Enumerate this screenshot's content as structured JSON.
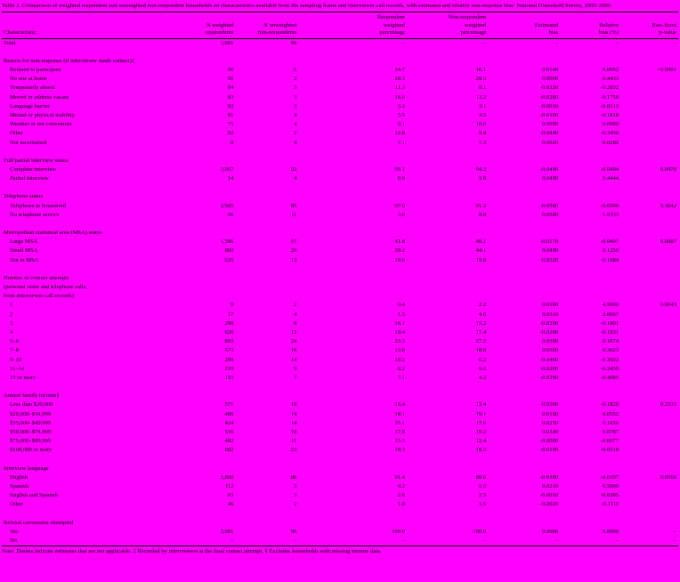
{
  "page": {
    "background_color": "#FF00FF",
    "title": "Table 2. Comparison of weighted respondent and unweighted non-respondent households on characteristics available from the sampling frame and interviewer call records, with estimated and relative non-response bias: National Household Survey, 2005–2006",
    "footnote": "Note: Dashes indicate estimates that are not applicable. ‡ Recorded by interviewers at the final contact attempt. § Excludes households with missing income data."
  },
  "table": {
    "columns": [
      {
        "label": "Characteristic"
      },
      {
        "label": "N weighted\nrespondents"
      },
      {
        "label": "N unweighted\nnon-respondents"
      },
      {
        "label": "Respondent\nweighted\npercentage"
      },
      {
        "label": "Non-respondent\nweighted\npercentage"
      },
      {
        "label": "Estimated\nbias"
      },
      {
        "label": "Relative\nbias (%)"
      },
      {
        "label": "Rao–Scott\np-value"
      }
    ],
    "total_row": {
      "label": "Total",
      "cells": [
        "3,081",
        "96",
        "–",
        "–",
        "–",
        "–",
        "–"
      ]
    },
    "sections": [
      {
        "header_lines": [
          "Reason for non-response (if interviewer made contact)‡"
        ],
        "rows": [
          {
            "label": "Refused to participate",
            "cells": [
              "56",
              "6",
              "14.7",
              "16.1",
              "0.0140",
              "0.0952",
              "<0.0001"
            ]
          },
          {
            "label": "No one at home",
            "cells": [
              "95",
              "2",
              "20.3",
              "29.3",
              "0.0900",
              "0.4433",
              ""
            ]
          },
          {
            "label": "Temporarily absent",
            "cells": [
              "84",
              "3",
              "11.3",
              "8.1",
              "-0.0320",
              "-0.2832",
              ""
            ]
          },
          {
            "label": "Moved or address vacant",
            "cells": [
              "83",
              "3",
              "16.0",
              "13.2",
              "-0.0280",
              "-0.1750",
              ""
            ]
          },
          {
            "label": "Language barrier",
            "cells": [
              "82",
              "3",
              "3.2",
              "3.1",
              "-0.0010",
              "-0.0313",
              ""
            ]
          },
          {
            "label": "Mental or physical inability",
            "cells": [
              "81",
              "4",
              "5.5",
              "4.5",
              "-0.0100",
              "-0.1818",
              ""
            ]
          },
          {
            "label": "Weather or not convenient",
            "cells": [
              "75",
              "4",
              "9.1",
              "10.0",
              "0.0090",
              "0.0989",
              ""
            ]
          },
          {
            "label": "Other",
            "cells": [
              "82",
              "2",
              "12.8",
              "8.4",
              "-0.0440",
              "-0.3438",
              ""
            ]
          },
          {
            "label": "Not ascertained",
            "cells": [
              "8",
              "4",
              "7.1",
              "7.3",
              "0.0020",
              "0.0282",
              ""
            ]
          }
        ]
      },
      {
        "header_lines": [
          "Full/partial interview status"
        ],
        "rows": [
          {
            "label": "Complete interview",
            "cells": [
              "3,067",
              "92",
              "99.1",
              "94.2",
              "-0.0490",
              "-0.0494",
              "0.0478"
            ]
          },
          {
            "label": "Partial interview",
            "cells": [
              "14",
              "4",
              "0.9",
              "5.8",
              "0.0490",
              "5.4444",
              ""
            ]
          }
        ]
      },
      {
        "header_lines": [
          "Telephone status"
        ],
        "rows": [
          {
            "label": "Telephone in household",
            "cells": [
              "2,985",
              "85",
              "97.0",
              "91.2",
              "-0.0580",
              "-0.0598",
              "0.3042"
            ]
          },
          {
            "label": "No telephone service",
            "cells": [
              "96",
              "11",
              "3.0",
              "8.8",
              "0.0580",
              "1.9333",
              ""
            ]
          }
        ]
      },
      {
        "header_lines": [
          "Metropolitan statistical area (MSA) status"
        ],
        "rows": [
          {
            "label": "Large MSA",
            "cells": [
              "1,586",
              "57",
              "41.8",
              "40.1",
              "-0.0170",
              "-0.0407",
              "0.0087"
            ]
          },
          {
            "label": "Small MSA",
            "cells": [
              "860",
              "26",
              "39.2",
              "44.1",
              "0.0490",
              "0.1250",
              ""
            ]
          },
          {
            "label": "Not in MSA",
            "cells": [
              "635",
              "13",
              "19.0",
              "15.8",
              "-0.0320",
              "-0.1684",
              ""
            ]
          }
        ]
      },
      {
        "header_lines": [
          "Number of contact attempts",
          "(personal visits and telephone calls,",
          "from interviewer call records)"
        ],
        "rows": [
          {
            "label": "1",
            "cells": [
              "9",
              "2",
              "0.4",
              "2.2",
              "0.0180",
              "4.5000",
              "0.0643"
            ]
          },
          {
            "label": "2",
            "cells": [
              "17",
              "4",
              "1.5",
              "4.6",
              "0.0310",
              "2.0667",
              ""
            ]
          },
          {
            "label": "3",
            "cells": [
              "298",
              "8",
              "16.1",
              "13.2",
              "-0.0290",
              "-0.1801",
              ""
            ]
          },
          {
            "label": "4",
            "cells": [
              "620",
              "12",
              "19.4",
              "17.4",
              "-0.0200",
              "-0.1031",
              ""
            ]
          },
          {
            "label": "5–6",
            "cells": [
              "893",
              "24",
              "23.3",
              "27.2",
              "0.0390",
              "0.1674",
              ""
            ]
          },
          {
            "label": "7–8",
            "cells": [
              "573",
              "16",
              "13.8",
              "18.8",
              "0.0500",
              "0.3623",
              ""
            ]
          },
          {
            "label": "9–10",
            "cells": [
              "299",
              "14",
              "10.2",
              "6.2",
              "-0.0400",
              "-0.3922",
              ""
            ]
          },
          {
            "label": "11–14",
            "cells": [
              "219",
              "9",
              "8.2",
              "6.2",
              "-0.0200",
              "-0.2439",
              ""
            ]
          },
          {
            "label": "15 or more",
            "cells": [
              "153",
              "7",
              "7.1",
              "4.2",
              "-0.0290",
              "-0.4085",
              ""
            ]
          }
        ]
      },
      {
        "header_lines": [
          "Annual family income§"
        ],
        "rows": [
          {
            "label": "Less than $20,000",
            "cells": [
              "571",
              "16",
              "16.4",
              "13.4",
              "-0.0300",
              "-0.1829",
              "0.2333"
            ]
          },
          {
            "label": "$20,000–$34,999",
            "cells": [
              "486",
              "14",
              "18.1",
              "19.1",
              "0.0100",
              "0.0552",
              ""
            ]
          },
          {
            "label": "$35,000–$49,999",
            "cells": [
              "424",
              "14",
              "15.1",
              "17.6",
              "0.0250",
              "0.1656",
              ""
            ]
          },
          {
            "label": "$50,000–$74,999",
            "cells": [
              "516",
              "18",
              "17.8",
              "19.2",
              "0.0140",
              "0.0787",
              ""
            ]
          },
          {
            "label": "$75,000–$99,999",
            "cells": [
              "402",
              "11",
              "13.3",
              "12.4",
              "-0.0090",
              "-0.0677",
              ""
            ]
          },
          {
            "label": "$100,000 or more",
            "cells": [
              "682",
              "23",
              "19.3",
              "18.3",
              "-0.0100",
              "-0.0518",
              ""
            ]
          }
        ]
      },
      {
        "header_lines": [
          "Interview language"
        ],
        "rows": [
          {
            "label": "English",
            "cells": [
              "2,860",
              "86",
              "91.4",
              "89.6",
              "-0.0180",
              "-0.0197",
              "0.0566"
            ]
          },
          {
            "label": "Spanish",
            "cells": [
              "112",
              "5",
              "4.2",
              "6.3",
              "0.0210",
              "0.5000",
              ""
            ]
          },
          {
            "label": "English and Spanish",
            "cells": [
              "63",
              "3",
              "2.6",
              "2.5",
              "-0.0010",
              "-0.0385",
              ""
            ]
          },
          {
            "label": "Other",
            "cells": [
              "46",
              "2",
              "1.8",
              "1.6",
              "-0.0020",
              "-0.1111",
              ""
            ]
          }
        ]
      },
      {
        "header_lines": [
          "Refusal conversion attempted"
        ],
        "rows": [
          {
            "label": "Yes",
            "cells": [
              "3,081",
              "96",
              "100.0",
              "100.0",
              "0.0000",
              "0.0000",
              "–"
            ]
          },
          {
            "label": "No",
            "cells": [
              "–",
              "–",
              "–",
              "–",
              "–",
              "–",
              "–"
            ]
          }
        ]
      }
    ]
  }
}
